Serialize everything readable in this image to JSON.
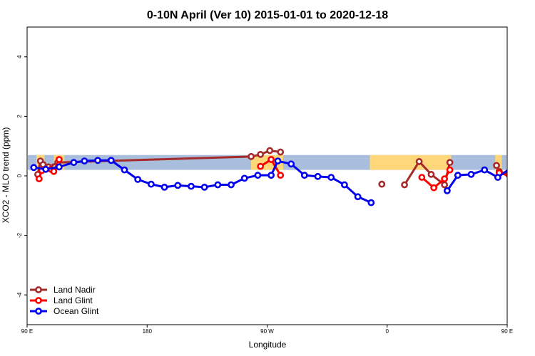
{
  "chart_data": {
    "type": "line",
    "title": "0-10N April (Ver 10)   2015-01-01 to 2020-12-18",
    "xlabel": "Longitude",
    "ylabel": "XCO2 - MLO trend (ppm)",
    "xlim": [
      90,
      450
    ],
    "ylim": [
      -5,
      5
    ],
    "x_ticks": [
      {
        "value": 90,
        "label": "90 E"
      },
      {
        "value": 180,
        "label": "180"
      },
      {
        "value": 270,
        "label": "90 W"
      },
      {
        "value": 360,
        "label": "0"
      },
      {
        "value": 450,
        "label": "90 E"
      },
      {
        "value": 540,
        "label": "180"
      }
    ],
    "y_ticks": [
      -4,
      -2,
      0,
      2,
      4
    ],
    "band": {
      "ymin": 0.2,
      "ymax": 0.7,
      "ocean_color": "#a8bedc",
      "land_color": "#fdd77a"
    },
    "land_segments": [
      [
        97,
        103
      ],
      [
        110,
        118
      ],
      [
        258,
        282
      ],
      [
        347,
        408
      ],
      [
        441,
        446
      ],
      [
        460,
        482
      ]
    ],
    "legend": {
      "position": "bottom-left"
    },
    "series": [
      {
        "name": "Land Nadir",
        "color": "#a52a2a",
        "points": [
          [
            98,
            0.05
          ],
          [
            100,
            0.5
          ],
          [
            102,
            0.38
          ],
          [
            106,
            0.3
          ],
          [
            113,
            0.45
          ],
          [
            258,
            0.65
          ],
          [
            265,
            0.72
          ],
          [
            272,
            0.85
          ],
          [
            280,
            0.8
          ],
          null,
          [
            356,
            -0.28
          ],
          null,
          [
            373,
            -0.3
          ],
          [
            384,
            0.48
          ],
          [
            393,
            0.05
          ],
          [
            403,
            -0.3
          ],
          [
            407,
            0.45
          ],
          null,
          [
            442,
            0.35
          ],
          [
            444,
            0.15
          ],
          [
            451,
            0.05
          ],
          [
            460,
            0.15
          ],
          [
            463,
            0.5
          ],
          [
            466,
            0.35
          ],
          [
            470,
            0.3
          ],
          [
            474,
            0.3
          ],
          [
            478,
            0.5
          ]
        ]
      },
      {
        "name": "Land Glint",
        "color": "#ff0000",
        "points": [
          [
            99,
            -0.1
          ],
          [
            101,
            0.18
          ],
          [
            108,
            0.22
          ],
          [
            110,
            0.15
          ],
          [
            114,
            0.55
          ],
          null,
          [
            265,
            0.32
          ],
          [
            273,
            0.55
          ],
          [
            280,
            0.02
          ],
          null,
          [
            386,
            -0.05
          ],
          [
            395,
            -0.4
          ],
          [
            403,
            -0.1
          ],
          [
            407,
            0.2
          ],
          null,
          [
            444,
            0.1
          ],
          [
            460,
            -0.1
          ],
          [
            462,
            0.15
          ],
          [
            470,
            0.28
          ],
          [
            475,
            0.15
          ],
          [
            478,
            0.55
          ]
        ]
      },
      {
        "name": "Ocean Glint",
        "color": "#0000ee",
        "points": [
          [
            95,
            0.28
          ],
          [
            104,
            0.22
          ],
          [
            114,
            0.3
          ],
          [
            125,
            0.45
          ],
          [
            133,
            0.5
          ],
          [
            143,
            0.52
          ],
          [
            153,
            0.52
          ],
          [
            163,
            0.2
          ],
          [
            173,
            -0.12
          ],
          [
            183,
            -0.28
          ],
          [
            193,
            -0.38
          ],
          [
            203,
            -0.32
          ],
          [
            213,
            -0.35
          ],
          [
            223,
            -0.38
          ],
          [
            233,
            -0.3
          ],
          [
            243,
            -0.3
          ],
          [
            253,
            -0.08
          ],
          [
            263,
            0.02
          ],
          [
            273,
            0.02
          ],
          [
            278,
            0.5
          ],
          [
            288,
            0.4
          ],
          [
            298,
            0.02
          ],
          [
            308,
            -0.02
          ],
          [
            318,
            -0.05
          ],
          [
            328,
            -0.3
          ],
          [
            338,
            -0.7
          ],
          [
            348,
            -0.9
          ],
          null,
          [
            405,
            -0.5
          ],
          [
            413,
            0.02
          ],
          [
            423,
            0.05
          ],
          [
            433,
            0.2
          ],
          [
            443,
            -0.05
          ],
          [
            453,
            0.28
          ],
          [
            463,
            0.25
          ],
          [
            473,
            0.3
          ],
          [
            483,
            0.45
          ],
          [
            493,
            0.48
          ],
          [
            503,
            0.52
          ],
          [
            513,
            0.52
          ],
          [
            523,
            0.22
          ],
          [
            533,
            -0.1
          ]
        ]
      }
    ]
  }
}
